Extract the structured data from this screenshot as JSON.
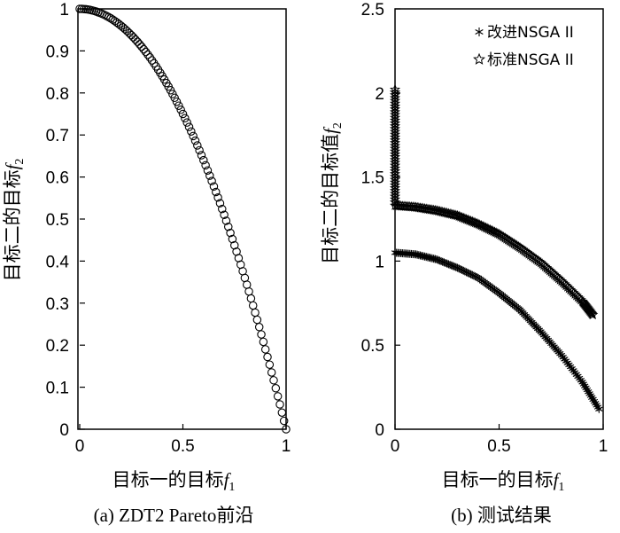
{
  "chart_data": [
    {
      "type": "scatter",
      "caption": "(a) ZDT2 Pareto前沿",
      "xlabel": "目标一的目标",
      "xlabel_symbol": "f",
      "xlabel_sub": "1",
      "ylabel": "目标二的目标",
      "ylabel_symbol": "f",
      "ylabel_sub": "2",
      "xlim": [
        0,
        1
      ],
      "ylim": [
        0,
        1
      ],
      "xticks": [
        0,
        0.5,
        1
      ],
      "xtick_labels": [
        "0",
        "0.5",
        "1"
      ],
      "yticks": [
        0,
        0.1,
        0.2,
        0.3,
        0.4,
        0.5,
        0.6,
        0.7,
        0.8,
        0.9,
        1
      ],
      "ytick_labels": [
        "0",
        "0.1",
        "0.2",
        "0.3",
        "0.4",
        "0.5",
        "0.6",
        "0.7",
        "0.8",
        "0.9",
        "1"
      ],
      "grid": false,
      "series": [
        {
          "marker": "circle",
          "color": "#000000",
          "curve": "y = 1 - x^2",
          "x_range": [
            0,
            1
          ],
          "count": 100
        }
      ]
    },
    {
      "type": "scatter",
      "caption": "(b) 测试结果",
      "xlabel": "目标一的目标",
      "xlabel_symbol": "f",
      "xlabel_sub": "1",
      "ylabel": "目标二的目标值",
      "ylabel_symbol": "f",
      "ylabel_sub": "2",
      "xlim": [
        0,
        1
      ],
      "ylim": [
        0,
        2.5
      ],
      "xticks": [
        0,
        0.5,
        1
      ],
      "xtick_labels": [
        "0",
        "0.5",
        "1"
      ],
      "yticks": [
        0,
        0.5,
        1,
        1.5,
        2,
        2.5
      ],
      "ytick_labels": [
        "0",
        "0.5",
        "1",
        "1.5",
        "2",
        "2.5"
      ],
      "grid": false,
      "legend": "top-right",
      "series": [
        {
          "name": "改进NSGA II",
          "marker": "asterisk",
          "color": "#000000",
          "vertical_at_x0": [
            1.05,
            1.05
          ],
          "curve": "y ≈ 1.05 - 0.95·x^2",
          "points": [
            [
              0,
              1.05
            ],
            [
              0.1,
              1.04
            ],
            [
              0.2,
              1.01
            ],
            [
              0.3,
              0.96
            ],
            [
              0.4,
              0.9
            ],
            [
              0.5,
              0.81
            ],
            [
              0.6,
              0.71
            ],
            [
              0.7,
              0.58
            ],
            [
              0.8,
              0.44
            ],
            [
              0.9,
              0.28
            ],
            [
              0.98,
              0.12
            ]
          ]
        },
        {
          "name": "标准NSGA II",
          "marker": "star",
          "color": "#000000",
          "vertical_at_x0": [
            1.35,
            2.02
          ],
          "curve": "y ≈ 1.33 - 0.7·x^2",
          "points": [
            [
              0,
              1.33
            ],
            [
              0.1,
              1.32
            ],
            [
              0.2,
              1.3
            ],
            [
              0.3,
              1.27
            ],
            [
              0.4,
              1.22
            ],
            [
              0.5,
              1.16
            ],
            [
              0.6,
              1.08
            ],
            [
              0.7,
              0.99
            ],
            [
              0.8,
              0.88
            ],
            [
              0.9,
              0.76
            ],
            [
              0.95,
              0.68
            ]
          ]
        }
      ]
    }
  ]
}
